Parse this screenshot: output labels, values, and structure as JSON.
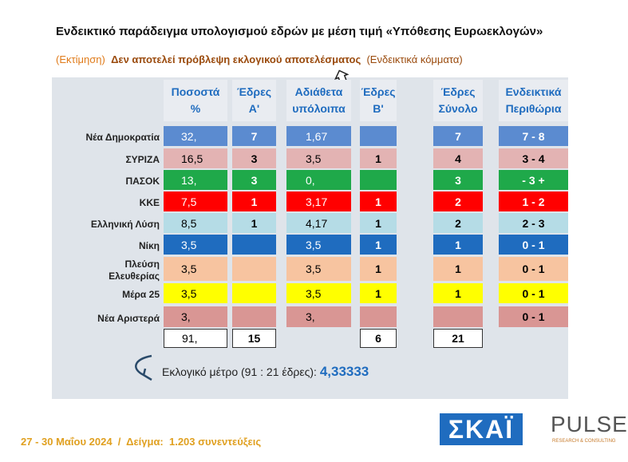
{
  "header": {
    "title": "Ενδεικτικό παράδειγμα υπολογισμού εδρών με μέση τιμή «Υπόθεσης Ευρωεκλογών»",
    "subtitle": {
      "left": "(Εκτίμηση)",
      "main": "Δεν αποτελεί πρόβλεψη εκλογικού αποτελέσματος",
      "right": "(Ενδεικτικά κόμματα)"
    }
  },
  "table": {
    "columns": [
      [
        "Ποσοστά",
        "%"
      ],
      [
        "Έδρες",
        "Α'"
      ],
      [
        "Αδιάθετα",
        "υπόλοιπα"
      ],
      [
        "Έδρες",
        "Β'"
      ],
      [
        "Έδρες",
        "Σύνολο"
      ],
      [
        "Ενδεικτικά",
        "Περιθώρια"
      ]
    ],
    "rows": [
      {
        "name": [
          "Νέα Δημοκρατία"
        ],
        "color": "#5b8bd0",
        "cells": [
          "32,",
          "7",
          "1,67",
          null,
          "7",
          "7 - 8"
        ]
      },
      {
        "name": [
          "ΣΥΡΙΖΑ"
        ],
        "color": "#e3b3b3",
        "cells": [
          "16,5",
          "3",
          "3,5",
          "1",
          "4",
          "3 - 4"
        ]
      },
      {
        "name": [
          "ΠΑΣΟΚ"
        ],
        "color": "#1fa94a",
        "cells": [
          "13,",
          "3",
          "0,",
          null,
          "3",
          "- 3 +"
        ]
      },
      {
        "name": [
          "ΚΚΕ"
        ],
        "color": "#ff0000",
        "cells": [
          "7,5",
          "1",
          "3,17",
          "1",
          "2",
          "1 - 2"
        ]
      },
      {
        "name": [
          "Ελληνική Λύση"
        ],
        "color": "#b5dce6",
        "cells": [
          "8,5",
          "1",
          "4,17",
          "1",
          "2",
          "2 - 3"
        ]
      },
      {
        "name": [
          "Νίκη"
        ],
        "color": "#1f6cbf",
        "cells": [
          "3,5",
          null,
          "3,5",
          "1",
          "1",
          "0 - 1"
        ]
      },
      {
        "name": [
          "Πλεύση",
          "Ελευθερίας"
        ],
        "color": "#f7c4a0",
        "cells": [
          "3,5",
          null,
          "3,5",
          "1",
          "1",
          "0 - 1"
        ]
      },
      {
        "name": [
          "Μέρα 25"
        ],
        "color": "#ffff00",
        "cells": [
          "3,5",
          null,
          "3,5",
          "1",
          "1",
          "0 - 1"
        ]
      },
      {
        "name": [
          "Νέα Αριστερά"
        ],
        "color": "#d99694",
        "cells": [
          "3,",
          null,
          "3,",
          null,
          null,
          "0 - 1"
        ]
      }
    ],
    "totals": [
      "91,",
      "15",
      null,
      "6",
      "21"
    ]
  },
  "formula": {
    "text": "Εκλογικό μέτρο (91 : 21 έδρες):",
    "value": "4,33333"
  },
  "footer": {
    "text": "27 - 30 Μαΐου 2024  /  Δείγμα:  1.203 συνεντεύξεις",
    "logo1": "ΣΚΑΪ",
    "logo2": "PULSE",
    "logo2_sub": "RESEARCH & CONSULTING"
  }
}
